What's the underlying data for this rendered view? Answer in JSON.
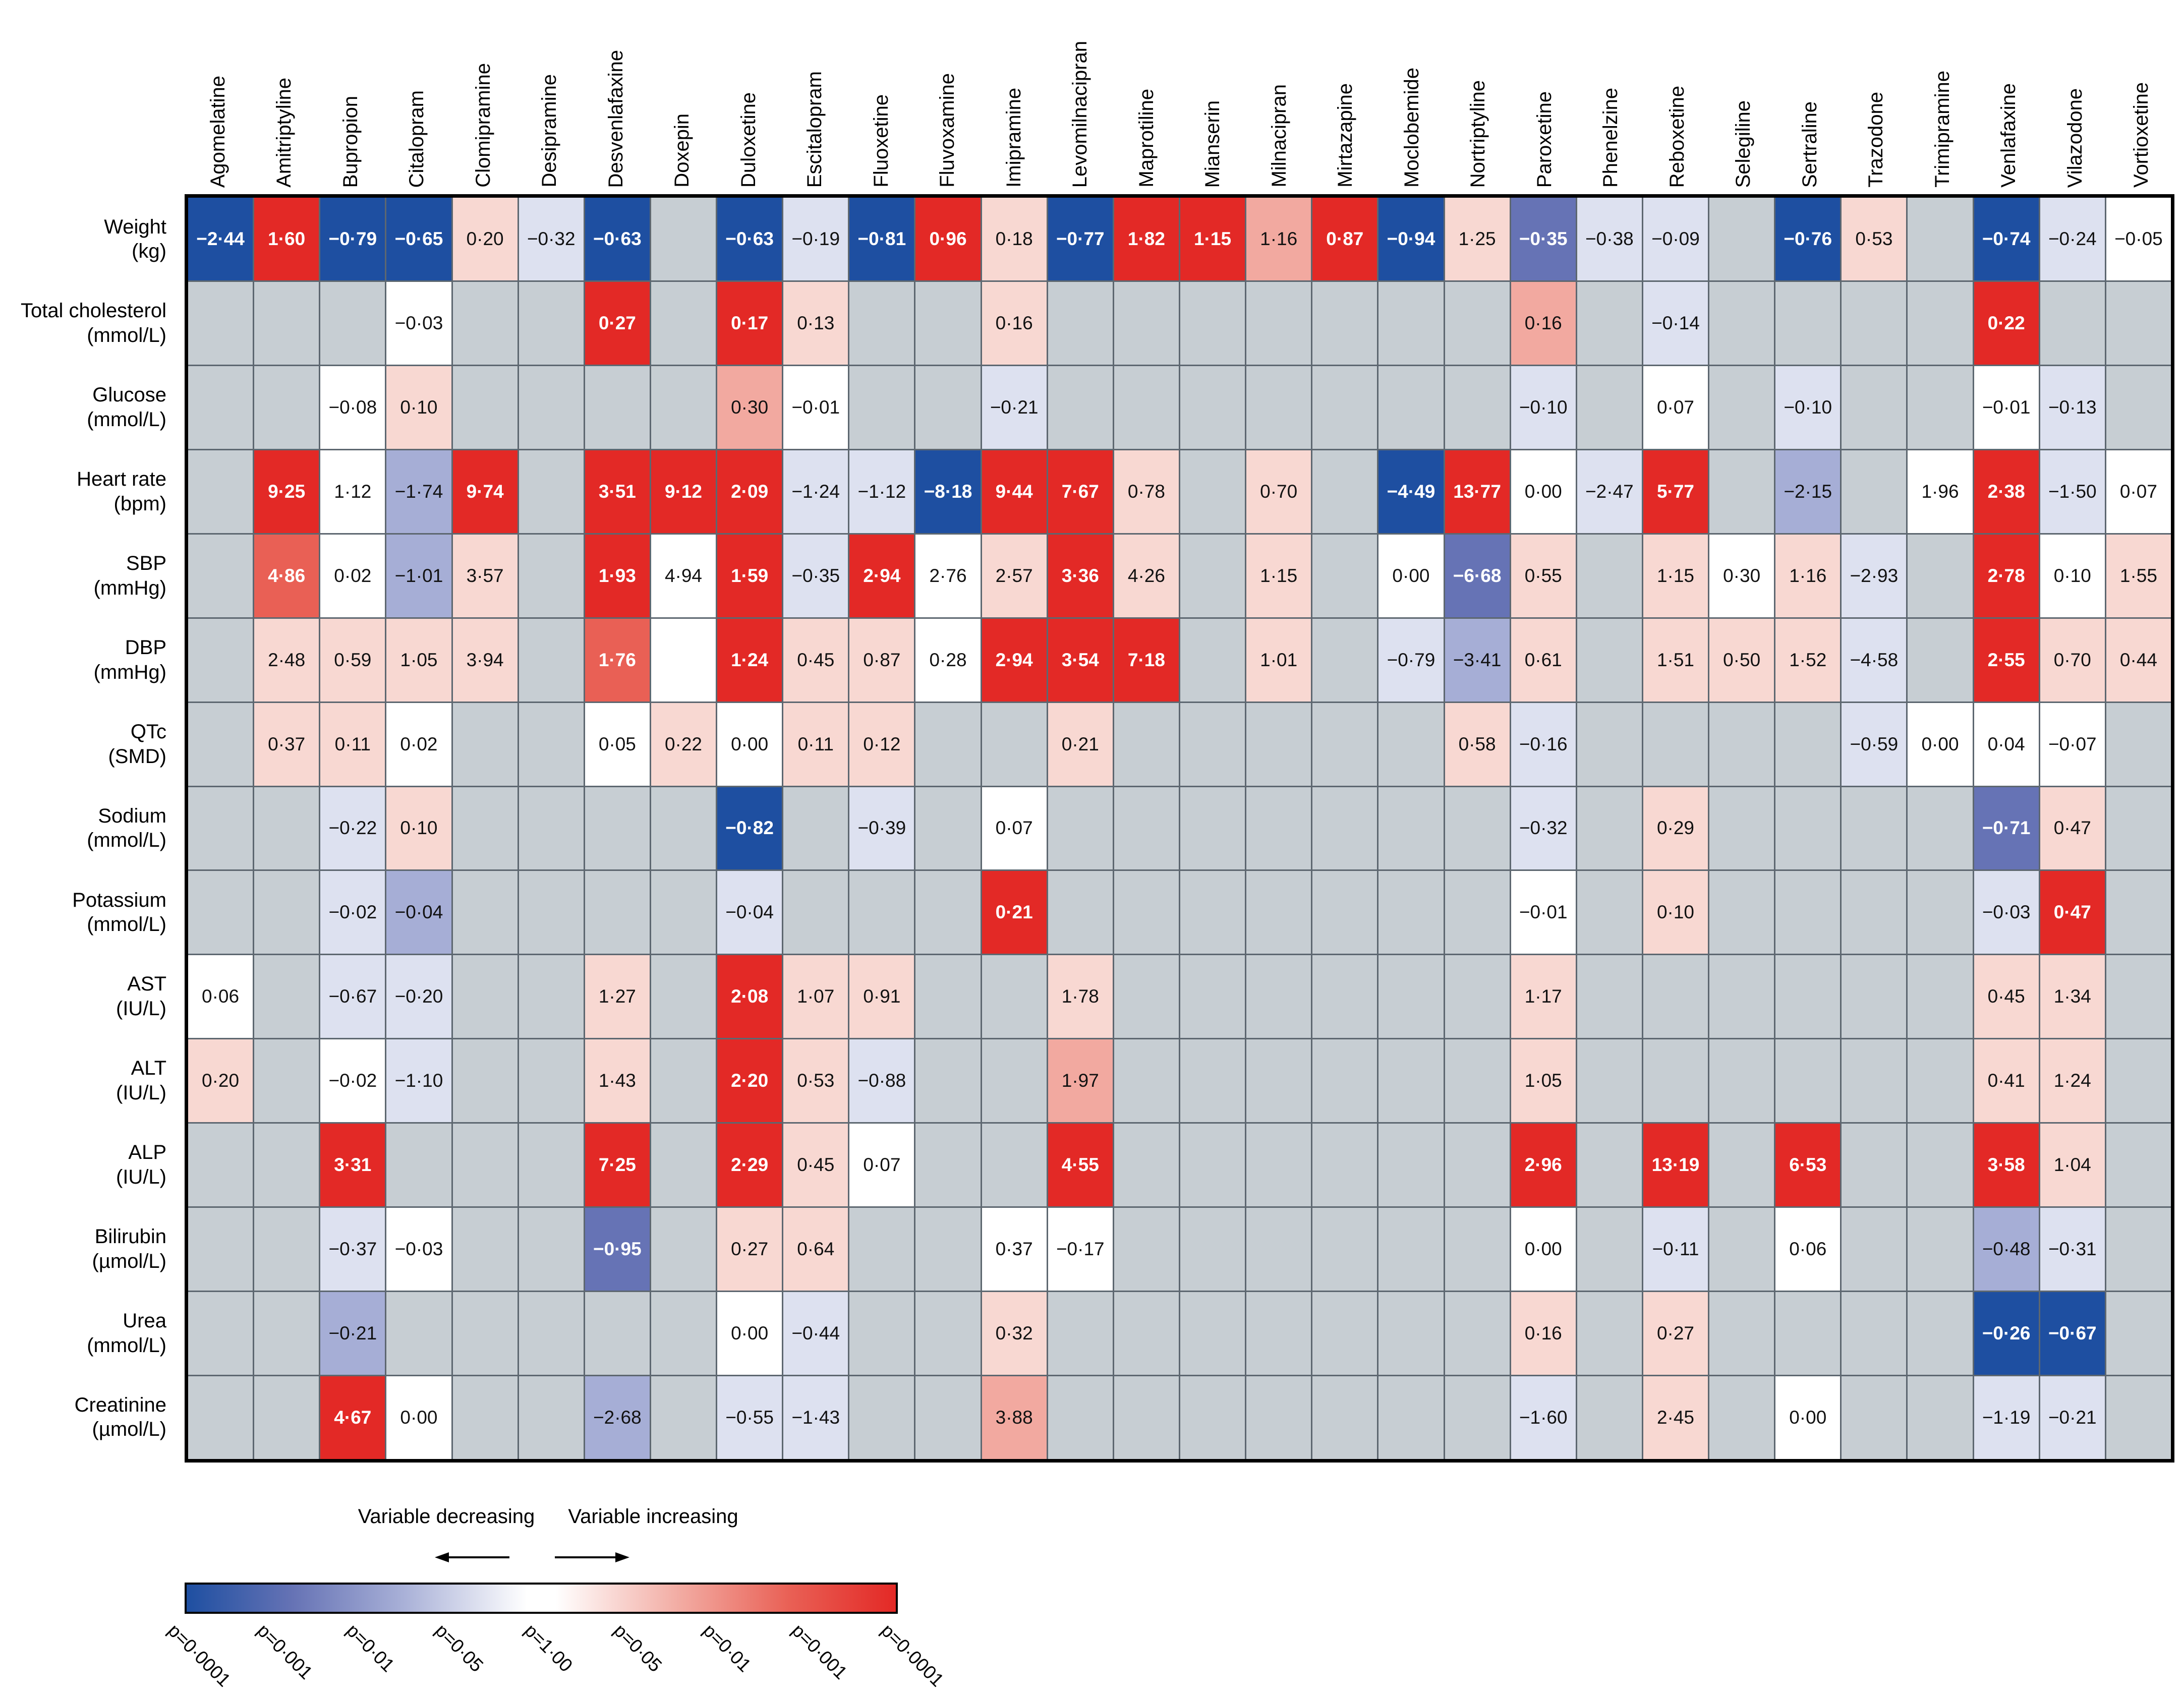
{
  "chart_data": {
    "type": "heatmap",
    "title": "",
    "legend": {
      "decreasing_label": "Variable decreasing",
      "increasing_label": "Variable increasing",
      "scale_labels": [
        "p=0·0001",
        "p=0·001",
        "p=0·01",
        "p=0·05",
        "p=1·00",
        "p=0·05",
        "p=0·01",
        "p=0·001",
        "p=0·0001"
      ]
    },
    "icons": {
      "decreasing_arrow": "left-arrow-icon",
      "increasing_arrow": "right-arrow-icon"
    },
    "colors": {
      "missing": "#c7ced3",
      "levels": {
        "-4": "#1e4fa1",
        "-3": "#6673b5",
        "-2": "#a6aed6",
        "-1": "#dde1f0",
        "0": "#ffffff",
        "1": "#f8d8d2",
        "2": "#f2a9a0",
        "3": "#e96055",
        "4": "#e32926"
      },
      "gradient": [
        "#1e4fa1",
        "#6673b5 15%",
        "#a6aed6 30%",
        "#ffffff 48%",
        "#ffffff 52%",
        "#f2a9a0 70%",
        "#e96055 85%",
        "#e32926"
      ]
    },
    "columns": [
      "Agomelatine",
      "Amitriptyline",
      "Bupropion",
      "Citalopram",
      "Clomipramine",
      "Desipramine",
      "Desvenlafaxine",
      "Doxepin",
      "Duloxetine",
      "Escitalopram",
      "Fluoxetine",
      "Fluvoxamine",
      "Imipramine",
      "Levomilnacipran",
      "Maprotiline",
      "Mianserin",
      "Milnacipran",
      "Mirtazapine",
      "Moclobemide",
      "Nortriptyline",
      "Paroxetine",
      "Phenelzine",
      "Reboxetine",
      "Selegiline",
      "Sertraline",
      "Trazodone",
      "Trimipramine",
      "Venlafaxine",
      "Vilazodone",
      "Vortioxetine"
    ],
    "rows": [
      {
        "label": "Weight",
        "unit": "(kg)",
        "cells": [
          [
            "−2·44",
            -4
          ],
          [
            "1·60",
            4
          ],
          [
            "−0·79",
            -4
          ],
          [
            "−0·65",
            -4
          ],
          [
            "0·20",
            1
          ],
          [
            "−0·32",
            -1
          ],
          [
            "−0·63",
            -4
          ],
          null,
          [
            "−0·63",
            -4
          ],
          [
            "−0·19",
            -1
          ],
          [
            "−0·81",
            -4
          ],
          [
            "0·96",
            4
          ],
          [
            "0·18",
            1
          ],
          [
            "−0·77",
            -4
          ],
          [
            "1·82",
            4
          ],
          [
            "1·15",
            4
          ],
          [
            "1·16",
            2
          ],
          [
            "0·87",
            4
          ],
          [
            "−0·94",
            -4
          ],
          [
            "1·25",
            1
          ],
          [
            "−0·35",
            -3
          ],
          [
            "−0·38",
            -1
          ],
          [
            "−0·09",
            -1
          ],
          null,
          [
            "−0·76",
            -4
          ],
          [
            "0·53",
            1
          ],
          null,
          [
            "−0·74",
            -4
          ],
          [
            "−0·24",
            -1
          ],
          [
            "−0·05",
            0
          ]
        ]
      },
      {
        "label": "Total cholesterol",
        "unit": "(mmol/L)",
        "cells": [
          null,
          null,
          null,
          [
            "−0·03",
            0
          ],
          null,
          null,
          [
            "0·27",
            4
          ],
          null,
          [
            "0·17",
            4
          ],
          [
            "0·13",
            1
          ],
          null,
          null,
          [
            "0·16",
            1
          ],
          null,
          null,
          null,
          null,
          null,
          null,
          null,
          [
            "0·16",
            2
          ],
          null,
          [
            "−0·14",
            -1
          ],
          null,
          null,
          null,
          null,
          [
            "0·22",
            4
          ],
          null,
          null
        ]
      },
      {
        "label": "Glucose",
        "unit": "(mmol/L)",
        "cells": [
          null,
          null,
          [
            "−0·08",
            0
          ],
          [
            "0·10",
            1
          ],
          null,
          null,
          null,
          null,
          [
            "0·30",
            2
          ],
          [
            "−0·01",
            0
          ],
          null,
          null,
          [
            "−0·21",
            -1
          ],
          null,
          null,
          null,
          null,
          null,
          null,
          null,
          [
            "−0·10",
            -1
          ],
          null,
          [
            "0·07",
            0
          ],
          null,
          [
            "−0·10",
            -1
          ],
          null,
          null,
          [
            "−0·01",
            0
          ],
          [
            "−0·13",
            -1
          ],
          null
        ]
      },
      {
        "label": "Heart rate",
        "unit": "(bpm)",
        "cells": [
          null,
          [
            "9·25",
            4
          ],
          [
            "1·12",
            0
          ],
          [
            "−1·74",
            -2
          ],
          [
            "9·74",
            4
          ],
          null,
          [
            "3·51",
            4
          ],
          [
            "9·12",
            4
          ],
          [
            "2·09",
            4
          ],
          [
            "−1·24",
            -1
          ],
          [
            "−1·12",
            -1
          ],
          [
            "−8·18",
            -4
          ],
          [
            "9·44",
            4
          ],
          [
            "7·67",
            4
          ],
          [
            "0·78",
            1
          ],
          null,
          [
            "0·70",
            1
          ],
          null,
          [
            "−4·49",
            -4
          ],
          [
            "13·77",
            4
          ],
          [
            "0·00",
            0
          ],
          [
            "−2·47",
            -1
          ],
          [
            "5·77",
            4
          ],
          null,
          [
            "−2·15",
            -2
          ],
          null,
          [
            "1·96",
            0
          ],
          [
            "2·38",
            4
          ],
          [
            "−1·50",
            -1
          ],
          [
            "0·07",
            0
          ]
        ]
      },
      {
        "label": "SBP",
        "unit": "(mmHg)",
        "cells": [
          null,
          [
            "4·86",
            3
          ],
          [
            "0·02",
            0
          ],
          [
            "−1·01",
            -2
          ],
          [
            "3·57",
            1
          ],
          null,
          [
            "1·93",
            4
          ],
          [
            "4·94",
            0
          ],
          [
            "1·59",
            4
          ],
          [
            "−0·35",
            -1
          ],
          [
            "2·94",
            4
          ],
          [
            "2·76",
            0
          ],
          [
            "2·57",
            1
          ],
          [
            "3·36",
            4
          ],
          [
            "4·26",
            1
          ],
          null,
          [
            "1·15",
            1
          ],
          null,
          [
            "0·00",
            0
          ],
          [
            "−6·68",
            -3
          ],
          [
            "0·55",
            1
          ],
          null,
          [
            "1·15",
            1
          ],
          [
            "0·30",
            0
          ],
          [
            "1·16",
            1
          ],
          [
            "−2·93",
            -1
          ],
          null,
          [
            "2·78",
            4
          ],
          [
            "0·10",
            0
          ],
          [
            "1·55",
            1
          ]
        ]
      },
      {
        "label": "DBP",
        "unit": "(mmHg)",
        "cells": [
          null,
          [
            "2·48",
            1
          ],
          [
            "0·59",
            1
          ],
          [
            "1·05",
            1
          ],
          [
            "3·94",
            1
          ],
          null,
          [
            "1·76",
            3
          ],
          [
            "",
            0
          ],
          [
            "1·24",
            4
          ],
          [
            "0·45",
            1
          ],
          [
            "0·87",
            1
          ],
          [
            "0·28",
            0
          ],
          [
            "2·94",
            4
          ],
          [
            "3·54",
            4
          ],
          [
            "7·18",
            4
          ],
          null,
          [
            "1·01",
            1
          ],
          null,
          [
            "−0·79",
            -1
          ],
          [
            "−3·41",
            -2
          ],
          [
            "0·61",
            1
          ],
          null,
          [
            "1·51",
            1
          ],
          [
            "0·50",
            1
          ],
          [
            "1·52",
            1
          ],
          [
            "−4·58",
            -1
          ],
          null,
          [
            "2·55",
            4
          ],
          [
            "0·70",
            1
          ],
          [
            "0·44",
            1
          ]
        ]
      },
      {
        "label": "QTc",
        "unit": "(SMD)",
        "cells": [
          null,
          [
            "0·37",
            1
          ],
          [
            "0·11",
            1
          ],
          [
            "0·02",
            0
          ],
          null,
          null,
          [
            "0·05",
            0
          ],
          [
            "0·22",
            1
          ],
          [
            "0·00",
            0
          ],
          [
            "0·11",
            1
          ],
          [
            "0·12",
            1
          ],
          null,
          null,
          [
            "0·21",
            1
          ],
          null,
          null,
          null,
          null,
          null,
          [
            "0·58",
            1
          ],
          [
            "−0·16",
            -1
          ],
          null,
          null,
          null,
          null,
          [
            "−0·59",
            -1
          ],
          [
            "0·00",
            0
          ],
          [
            "0·04",
            0
          ],
          [
            "−0·07",
            0
          ],
          null
        ]
      },
      {
        "label": "Sodium",
        "unit": "(mmol/L)",
        "cells": [
          null,
          null,
          [
            "−0·22",
            -1
          ],
          [
            "0·10",
            1
          ],
          null,
          null,
          null,
          null,
          [
            "−0·82",
            -4
          ],
          null,
          [
            "−0·39",
            -1
          ],
          null,
          [
            "0·07",
            0
          ],
          null,
          null,
          null,
          null,
          null,
          null,
          null,
          [
            "−0·32",
            -1
          ],
          null,
          [
            "0·29",
            1
          ],
          null,
          null,
          null,
          null,
          [
            "−0·71",
            -3
          ],
          [
            "0·47",
            1
          ],
          null
        ]
      },
      {
        "label": "Potassium",
        "unit": "(mmol/L)",
        "cells": [
          null,
          null,
          [
            "−0·02",
            -1
          ],
          [
            "−0·04",
            -2
          ],
          null,
          null,
          null,
          null,
          [
            "−0·04",
            -1
          ],
          null,
          null,
          null,
          [
            "0·21",
            4
          ],
          null,
          null,
          null,
          null,
          null,
          null,
          null,
          [
            "−0·01",
            0
          ],
          null,
          [
            "0·10",
            1
          ],
          null,
          null,
          null,
          null,
          [
            "−0·03",
            -1
          ],
          [
            "0·47",
            4
          ],
          null
        ]
      },
      {
        "label": "AST",
        "unit": "(IU/L)",
        "cells": [
          [
            "0·06",
            0
          ],
          null,
          [
            "−0·67",
            -1
          ],
          [
            "−0·20",
            -1
          ],
          null,
          null,
          [
            "1·27",
            1
          ],
          null,
          [
            "2·08",
            4
          ],
          [
            "1·07",
            1
          ],
          [
            "0·91",
            1
          ],
          null,
          null,
          [
            "1·78",
            1
          ],
          null,
          null,
          null,
          null,
          null,
          null,
          [
            "1·17",
            1
          ],
          null,
          null,
          null,
          null,
          null,
          null,
          [
            "0·45",
            1
          ],
          [
            "1·34",
            1
          ],
          null
        ]
      },
      {
        "label": "ALT",
        "unit": "(IU/L)",
        "cells": [
          [
            "0·20",
            1
          ],
          null,
          [
            "−0·02",
            0
          ],
          [
            "−1·10",
            -1
          ],
          null,
          null,
          [
            "1·43",
            1
          ],
          null,
          [
            "2·20",
            4
          ],
          [
            "0·53",
            1
          ],
          [
            "−0·88",
            -1
          ],
          null,
          null,
          [
            "1·97",
            2
          ],
          null,
          null,
          null,
          null,
          null,
          null,
          [
            "1·05",
            1
          ],
          null,
          null,
          null,
          null,
          null,
          null,
          [
            "0·41",
            1
          ],
          [
            "1·24",
            1
          ],
          null
        ]
      },
      {
        "label": "ALP",
        "unit": "(IU/L)",
        "cells": [
          null,
          null,
          [
            "3·31",
            4
          ],
          null,
          null,
          null,
          [
            "7·25",
            4
          ],
          null,
          [
            "2·29",
            4
          ],
          [
            "0·45",
            1
          ],
          [
            "0·07",
            0
          ],
          null,
          null,
          [
            "4·55",
            4
          ],
          null,
          null,
          null,
          null,
          null,
          null,
          [
            "2·96",
            4
          ],
          null,
          [
            "13·19",
            4
          ],
          null,
          [
            "6·53",
            4
          ],
          null,
          null,
          [
            "3·58",
            4
          ],
          [
            "1·04",
            1
          ],
          null
        ]
      },
      {
        "label": "Bilirubin",
        "unit": "(µmol/L)",
        "cells": [
          null,
          null,
          [
            "−0·37",
            -1
          ],
          [
            "−0·03",
            0
          ],
          null,
          null,
          [
            "−0·95",
            -3
          ],
          null,
          [
            "0·27",
            1
          ],
          [
            "0·64",
            1
          ],
          null,
          null,
          [
            "0·37",
            0
          ],
          [
            "−0·17",
            0
          ],
          null,
          null,
          null,
          null,
          null,
          null,
          [
            "0·00",
            0
          ],
          null,
          [
            "−0·11",
            -1
          ],
          null,
          [
            "0·06",
            0
          ],
          null,
          null,
          [
            "−0·48",
            -2
          ],
          [
            "−0·31",
            -1
          ],
          null
        ]
      },
      {
        "label": "Urea",
        "unit": "(mmol/L)",
        "cells": [
          null,
          null,
          [
            "−0·21",
            -2
          ],
          null,
          null,
          null,
          null,
          null,
          [
            "0·00",
            0
          ],
          [
            "−0·44",
            -1
          ],
          null,
          null,
          [
            "0·32",
            1
          ],
          null,
          null,
          null,
          null,
          null,
          null,
          null,
          [
            "0·16",
            1
          ],
          null,
          [
            "0·27",
            1
          ],
          null,
          null,
          null,
          null,
          [
            "−0·26",
            -4
          ],
          [
            "−0·67",
            -4
          ],
          null
        ]
      },
      {
        "label": "Creatinine",
        "unit": "(µmol/L)",
        "cells": [
          null,
          null,
          [
            "4·67",
            4
          ],
          [
            "0·00",
            0
          ],
          null,
          null,
          [
            "−2·68",
            -2
          ],
          null,
          [
            "−0·55",
            -1
          ],
          [
            "−1·43",
            -1
          ],
          null,
          null,
          [
            "3·88",
            2
          ],
          null,
          null,
          null,
          null,
          null,
          null,
          null,
          [
            "−1·60",
            -1
          ],
          null,
          [
            "2·45",
            1
          ],
          null,
          [
            "0·00",
            0
          ],
          null,
          null,
          [
            "−1·19",
            -1
          ],
          [
            "−0·21",
            -1
          ],
          null
        ]
      }
    ]
  }
}
